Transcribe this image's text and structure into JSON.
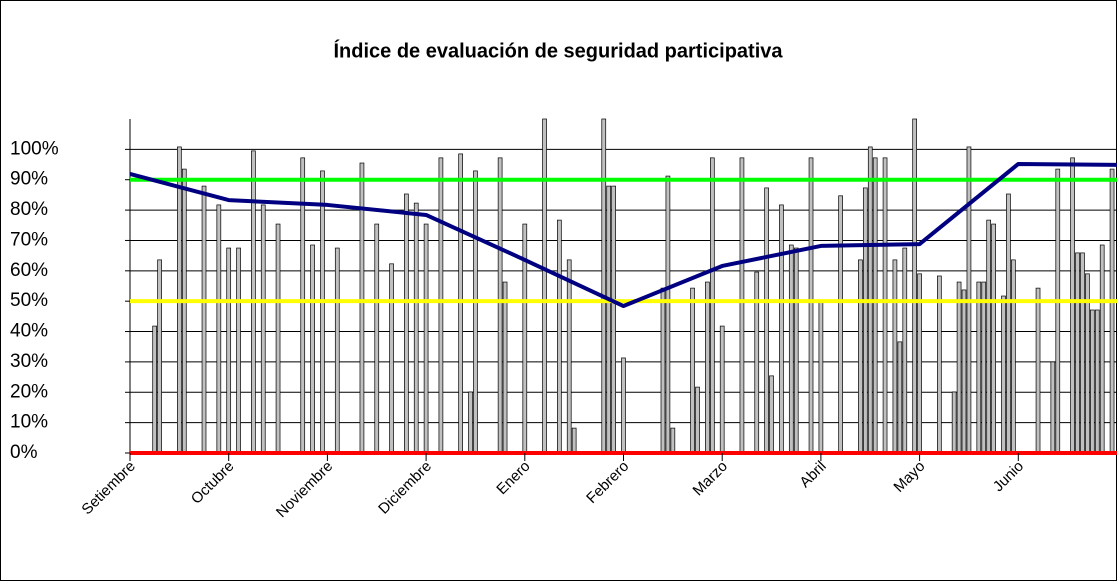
{
  "chart_data": {
    "type": "bar",
    "title": "Índice de evaluación de seguridad participativa",
    "xlim": [
      0,
      200
    ],
    "xticks": [
      {
        "value": 0,
        "label": "Setiembre"
      },
      {
        "value": 20,
        "label": "Octubre"
      },
      {
        "value": 40,
        "label": "Noviembre"
      },
      {
        "value": 60,
        "label": "Diciembre"
      },
      {
        "value": 80,
        "label": "Enero"
      },
      {
        "value": 100,
        "label": "Febrero"
      },
      {
        "value": 120,
        "label": "Marzo"
      },
      {
        "value": 140,
        "label": "Abril"
      },
      {
        "value": 160,
        "label": "Mayo"
      },
      {
        "value": 180,
        "label": "Junio"
      }
    ],
    "ylim": [
      0,
      110
    ],
    "yticks": [
      {
        "value": 0,
        "label": "0%"
      },
      {
        "value": 10,
        "label": "10%"
      },
      {
        "value": 20,
        "label": "20%"
      },
      {
        "value": 30,
        "label": "30%"
      },
      {
        "value": 40,
        "label": "40%"
      },
      {
        "value": 50,
        "label": "50%"
      },
      {
        "value": 60,
        "label": "60%"
      },
      {
        "value": 70,
        "label": "70%"
      },
      {
        "value": 80,
        "label": "80%"
      },
      {
        "value": 90,
        "label": "90%"
      },
      {
        "value": 100,
        "label": "100%"
      }
    ],
    "grid": true,
    "reference_lines": [
      {
        "value": 90,
        "color": "#00ff00"
      },
      {
        "value": 50,
        "color": "#ffff00"
      },
      {
        "value": 0,
        "color": "#ff0000"
      }
    ],
    "series": [
      {
        "type": "bar",
        "color": "#c0c0c0",
        "x": [
          5,
          6,
          10,
          11,
          15,
          18,
          20,
          22,
          25,
          27,
          30,
          35,
          37,
          39,
          42,
          47,
          50,
          53,
          56,
          58,
          60,
          63,
          67,
          69,
          70,
          75,
          76,
          80,
          84,
          87,
          89,
          90,
          96,
          97,
          98,
          100,
          108,
          109,
          110,
          114,
          115,
          117,
          118,
          120,
          124,
          127,
          129,
          130,
          132,
          134,
          135,
          138,
          140,
          144,
          148,
          149,
          150,
          151,
          153,
          155,
          156,
          157,
          159,
          160,
          164,
          167,
          168,
          169,
          170,
          172,
          173,
          174,
          175,
          177,
          178,
          179,
          184,
          187,
          188,
          191,
          192,
          193,
          194,
          195,
          196,
          197,
          199
        ],
        "values": [
          41.8,
          63.6,
          100.8,
          93.5,
          87.9,
          81.7,
          67.5,
          67.5,
          99.5,
          81.7,
          75.4,
          97.2,
          68.5,
          92.9,
          67.5,
          95.5,
          75.4,
          62.3,
          85.3,
          82.3,
          75.4,
          97.2,
          98.5,
          20.1,
          92.9,
          97.2,
          56.3,
          75.4,
          110,
          76.7,
          63.6,
          8.2,
          110,
          87.9,
          87.9,
          31.3,
          54.3,
          91.2,
          8.2,
          54.3,
          21.7,
          56.3,
          97.2,
          41.8,
          97.2,
          59.6,
          87.3,
          25.4,
          81.7,
          68.5,
          67.5,
          97.2,
          50.1,
          84.7,
          63.6,
          87.3,
          100.8,
          97.2,
          97.2,
          63.6,
          36.6,
          67.5,
          110,
          59,
          58.3,
          20.1,
          56.3,
          53.7,
          100.8,
          56.3,
          56.3,
          76.7,
          75.4,
          51.7,
          85.3,
          63.6,
          54.3,
          30,
          93.5,
          97.2,
          65.9,
          65.9,
          59,
          47.1,
          47.1,
          68.5,
          93.5
        ]
      },
      {
        "type": "line",
        "color": "#000080",
        "x": [
          0,
          20,
          40,
          60,
          80,
          100,
          120,
          140,
          160,
          180,
          200
        ],
        "values": [
          91.9,
          83.3,
          81.7,
          78.4,
          63.6,
          48.4,
          61.6,
          68.2,
          68.8,
          95.2,
          94.9
        ]
      }
    ]
  }
}
